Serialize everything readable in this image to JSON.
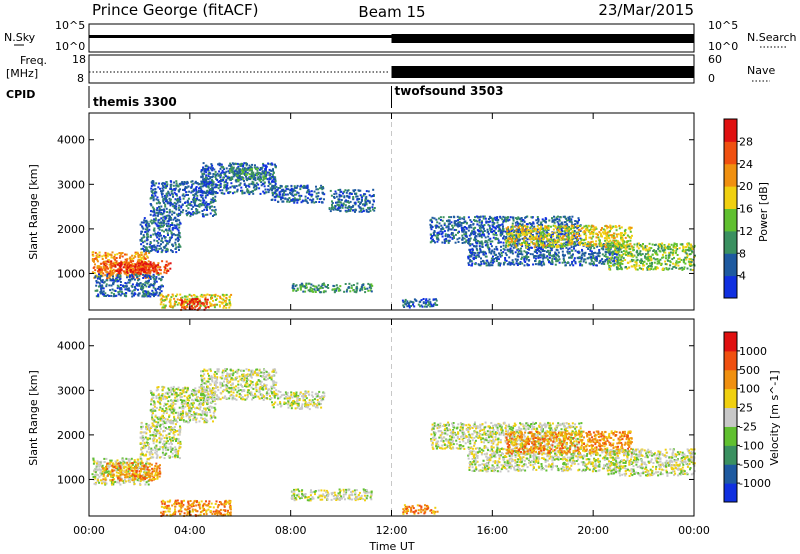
{
  "header": {
    "station": "Prince George (fitACF)",
    "beam": "Beam 15",
    "date": "23/Mar/2015"
  },
  "noise_panel": {
    "left_label": "N.Sky",
    "right_label": "N.Search",
    "left_ticks": [
      "10^5",
      "10^0"
    ],
    "right_ticks": [
      "10^5",
      "10^0"
    ]
  },
  "freq_panel": {
    "left_label_line1": "Freq.",
    "left_label_line2": "[MHz]",
    "right_label": "Nave",
    "left_ticks": [
      "18",
      "8"
    ],
    "right_ticks": [
      "60",
      "0"
    ]
  },
  "cpid_panel": {
    "label": "CPID",
    "modes": [
      {
        "name": "themis 3300",
        "start_hour": 0
      },
      {
        "name": "twofsound 3503",
        "start_hour": 12
      }
    ]
  },
  "axes": {
    "ylabel": "Slant Range [km]",
    "xlabel": "Time UT",
    "y_ticks": [
      "1000",
      "2000",
      "3000",
      "4000"
    ],
    "x_ticks": [
      "00:00",
      "04:00",
      "08:00",
      "12:00",
      "16:00",
      "20:00",
      "00:00"
    ]
  },
  "colors": {
    "power_scale": [
      "#1030e0",
      "#1e5aa0",
      "#3a9060",
      "#60c030",
      "#f0d010",
      "#f09010",
      "#f05010",
      "#e01010"
    ],
    "velocity_scale": [
      "#1030e0",
      "#1e5aa0",
      "#3a9060",
      "#60c030",
      "#c8c8c8",
      "#f0d010",
      "#f09010",
      "#f05010",
      "#e01010"
    ]
  },
  "chart_data": [
    {
      "type": "heatmap",
      "name": "Power",
      "colorbar_label": "Power [dB]",
      "colorbar_ticks": [
        "4",
        "8",
        "12",
        "16",
        "20",
        "24",
        "28"
      ],
      "xlim": [
        0,
        24
      ],
      "ylim": [
        180,
        4600
      ],
      "regions": [
        {
          "t": [
            0.1,
            2.4
          ],
          "r": [
            900,
            1500
          ],
          "level": 5
        },
        {
          "t": [
            0.3,
            3.2
          ],
          "r": [
            1000,
            1300
          ],
          "level": 6
        },
        {
          "t": [
            1.0,
            2.6
          ],
          "r": [
            1050,
            1250
          ],
          "level": 7
        },
        {
          "t": [
            0.2,
            2.9
          ],
          "r": [
            500,
            1000
          ],
          "level": 1
        },
        {
          "t": [
            2.0,
            3.6
          ],
          "r": [
            1500,
            2300
          ],
          "level": 1
        },
        {
          "t": [
            2.4,
            5.0
          ],
          "r": [
            2300,
            3100
          ],
          "level": 1
        },
        {
          "t": [
            4.4,
            7.4
          ],
          "r": [
            2800,
            3500
          ],
          "level": 1
        },
        {
          "t": [
            5.5,
            7.0
          ],
          "r": [
            3100,
            3400
          ],
          "level": 2
        },
        {
          "t": [
            7.2,
            9.3
          ],
          "r": [
            2600,
            3000
          ],
          "level": 1
        },
        {
          "t": [
            9.5,
            11.3
          ],
          "r": [
            2400,
            2900
          ],
          "level": 1
        },
        {
          "t": [
            2.8,
            5.6
          ],
          "r": [
            250,
            550
          ],
          "level": 4
        },
        {
          "t": [
            3.6,
            4.7
          ],
          "r": [
            200,
            450
          ],
          "level": 7
        },
        {
          "t": [
            8.0,
            11.2
          ],
          "r": [
            600,
            800
          ],
          "level": 2
        },
        {
          "t": [
            12.4,
            13.8
          ],
          "r": [
            250,
            450
          ],
          "level": 1
        },
        {
          "t": [
            13.5,
            19.5
          ],
          "r": [
            1700,
            2300
          ],
          "level": 1
        },
        {
          "t": [
            15.0,
            21.0
          ],
          "r": [
            1200,
            1700
          ],
          "level": 1
        },
        {
          "t": [
            16.5,
            21.5
          ],
          "r": [
            1600,
            2100
          ],
          "level": 4
        },
        {
          "t": [
            20.5,
            24.0
          ],
          "r": [
            1100,
            1700
          ],
          "level": 3
        }
      ]
    },
    {
      "type": "heatmap",
      "name": "Velocity",
      "colorbar_label": "Velocity [m s^-1]",
      "colorbar_ticks": [
        "1000",
        "500",
        "100",
        "25",
        "-25",
        "-100",
        "-500",
        "-1000"
      ],
      "xlim": [
        0,
        24
      ],
      "ylim": [
        180,
        4600
      ],
      "regions": [
        {
          "t": [
            0.1,
            2.4
          ],
          "r": [
            900,
            1500
          ],
          "level": 4
        },
        {
          "t": [
            0.5,
            2.8
          ],
          "r": [
            1000,
            1400
          ],
          "level": 6
        },
        {
          "t": [
            2.0,
            3.6
          ],
          "r": [
            1500,
            2300
          ],
          "level": 4
        },
        {
          "t": [
            2.4,
            5.0
          ],
          "r": [
            2300,
            3100
          ],
          "level": 4
        },
        {
          "t": [
            4.4,
            7.4
          ],
          "r": [
            2800,
            3500
          ],
          "level": 4
        },
        {
          "t": [
            7.2,
            9.3
          ],
          "r": [
            2600,
            3000
          ],
          "level": 4
        },
        {
          "t": [
            2.8,
            5.6
          ],
          "r": [
            200,
            550
          ],
          "level": 6
        },
        {
          "t": [
            8.0,
            11.2
          ],
          "r": [
            550,
            800
          ],
          "level": 4
        },
        {
          "t": [
            12.4,
            13.8
          ],
          "r": [
            250,
            450
          ],
          "level": 6
        },
        {
          "t": [
            13.5,
            19.5
          ],
          "r": [
            1700,
            2300
          ],
          "level": 4
        },
        {
          "t": [
            15.0,
            21.0
          ],
          "r": [
            1200,
            1700
          ],
          "level": 4
        },
        {
          "t": [
            16.5,
            21.5
          ],
          "r": [
            1600,
            2100
          ],
          "level": 6
        },
        {
          "t": [
            20.5,
            24.0
          ],
          "r": [
            1100,
            1700
          ],
          "level": 4
        }
      ]
    }
  ]
}
